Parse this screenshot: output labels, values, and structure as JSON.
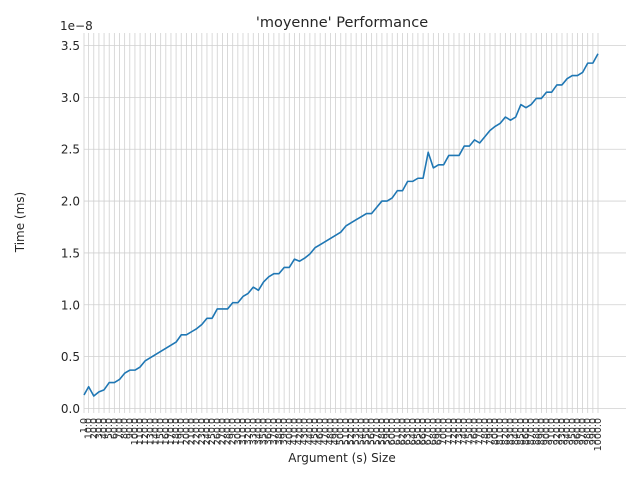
{
  "chart_data": {
    "type": "line",
    "title": "'moyenne' Performance",
    "xlabel": "Argument (s) Size",
    "ylabel": "Time (ms)",
    "y_offset_label": "1e−8",
    "ylim": [
      0,
      3.5
    ],
    "yticks": [
      "0.0",
      "0.5",
      "1.0",
      "1.5",
      "2.0",
      "2.5",
      "3.0",
      "3.5"
    ],
    "grid": true,
    "legend": "none",
    "line_color": "#1f77b4",
    "x_tick_values": [
      1,
      10,
      20,
      30,
      40,
      50,
      60,
      70,
      80,
      90,
      100,
      110,
      120,
      130,
      140,
      150,
      160,
      170,
      180,
      190,
      200,
      210,
      220,
      230,
      240,
      250,
      260,
      270,
      280,
      290,
      300,
      310,
      320,
      330,
      340,
      350,
      360,
      370,
      380,
      390,
      400,
      410,
      420,
      430,
      440,
      450,
      460,
      470,
      480,
      490,
      500,
      510,
      520,
      530,
      540,
      550,
      560,
      570,
      580,
      590,
      600,
      610,
      620,
      630,
      640,
      650,
      660,
      670,
      680,
      690,
      700,
      710,
      720,
      730,
      740,
      750,
      760,
      770,
      780,
      790,
      800,
      810,
      820,
      830,
      840,
      850,
      860,
      870,
      880,
      890,
      900,
      910,
      920,
      930,
      940,
      950,
      960,
      970,
      980,
      990,
      1000
    ],
    "x_tick_labels": [
      "1.0",
      "10.0",
      "20.0",
      "30.0",
      "40.0",
      "50.0",
      "60.0",
      "70.0",
      "80.0",
      "90.0",
      "100.0",
      "110.0",
      "120.0",
      "130.0",
      "140.0",
      "150.0",
      "160.0",
      "170.0",
      "180.0",
      "190.0",
      "200.0",
      "210.0",
      "220.0",
      "230.0",
      "240.0",
      "250.0",
      "260.0",
      "270.0",
      "280.0",
      "290.0",
      "300.0",
      "310.0",
      "320.0",
      "330.0",
      "340.0",
      "350.0",
      "360.0",
      "370.0",
      "380.0",
      "390.0",
      "400.0",
      "410.0",
      "420.0",
      "430.0",
      "440.0",
      "450.0",
      "460.0",
      "470.0",
      "480.0",
      "490.0",
      "500.0",
      "510.0",
      "520.0",
      "530.0",
      "540.0",
      "550.0",
      "560.0",
      "570.0",
      "580.0",
      "590.0",
      "600.0",
      "610.0",
      "620.0",
      "630.0",
      "640.0",
      "650.0",
      "660.0",
      "670.0",
      "680.0",
      "690.0",
      "700.0",
      "710.0",
      "720.0",
      "730.0",
      "740.0",
      "750.0",
      "760.0",
      "770.0",
      "780.0",
      "790.0",
      "800.0",
      "810.0",
      "820.0",
      "830.0",
      "840.0",
      "850.0",
      "860.0",
      "870.0",
      "880.0",
      "890.0",
      "900.0",
      "910.0",
      "920.0",
      "930.0",
      "940.0",
      "950.0",
      "960.0",
      "970.0",
      "980.0",
      "990.0",
      "1000.0"
    ],
    "series": [
      {
        "x": [
          1,
          10,
          20,
          30,
          40,
          50,
          60,
          70,
          80,
          90,
          100,
          110,
          120,
          130,
          140,
          150,
          160,
          170,
          180,
          190,
          200,
          210,
          220,
          230,
          240,
          250,
          260,
          270,
          280,
          290,
          300,
          310,
          320,
          330,
          340,
          350,
          360,
          370,
          380,
          390,
          400,
          410,
          420,
          430,
          440,
          450,
          460,
          470,
          480,
          490,
          500,
          510,
          520,
          530,
          540,
          550,
          560,
          570,
          580,
          590,
          600,
          610,
          620,
          630,
          640,
          650,
          660,
          670,
          680,
          690,
          700,
          710,
          720,
          730,
          740,
          750,
          760,
          770,
          780,
          790,
          800,
          810,
          820,
          830,
          840,
          850,
          860,
          870,
          880,
          890,
          900,
          910,
          920,
          930,
          940,
          950,
          960,
          970,
          980,
          990,
          1000
        ],
        "values": [
          0.13,
          0.21,
          0.12,
          0.16,
          0.18,
          0.25,
          0.25,
          0.28,
          0.34,
          0.37,
          0.37,
          0.4,
          0.46,
          0.49,
          0.52,
          0.55,
          0.58,
          0.61,
          0.64,
          0.71,
          0.71,
          0.74,
          0.77,
          0.81,
          0.87,
          0.87,
          0.96,
          0.96,
          0.96,
          1.02,
          1.02,
          1.08,
          1.11,
          1.17,
          1.14,
          1.22,
          1.27,
          1.3,
          1.3,
          1.36,
          1.36,
          1.44,
          1.42,
          1.45,
          1.49,
          1.55,
          1.58,
          1.61,
          1.64,
          1.67,
          1.7,
          1.76,
          1.79,
          1.82,
          1.85,
          1.88,
          1.88,
          1.94,
          2.0,
          2.0,
          2.03,
          2.1,
          2.1,
          2.19,
          2.19,
          2.22,
          2.22,
          2.47,
          2.32,
          2.35,
          2.35,
          2.44,
          2.44,
          2.44,
          2.53,
          2.53,
          2.59,
          2.56,
          2.62,
          2.68,
          2.72,
          2.75,
          2.81,
          2.78,
          2.81,
          2.93,
          2.9,
          2.93,
          2.99,
          2.99,
          3.05,
          3.05,
          3.12,
          3.12,
          3.18,
          3.21,
          3.21,
          3.24,
          3.33,
          3.33,
          3.42
        ]
      }
    ]
  }
}
